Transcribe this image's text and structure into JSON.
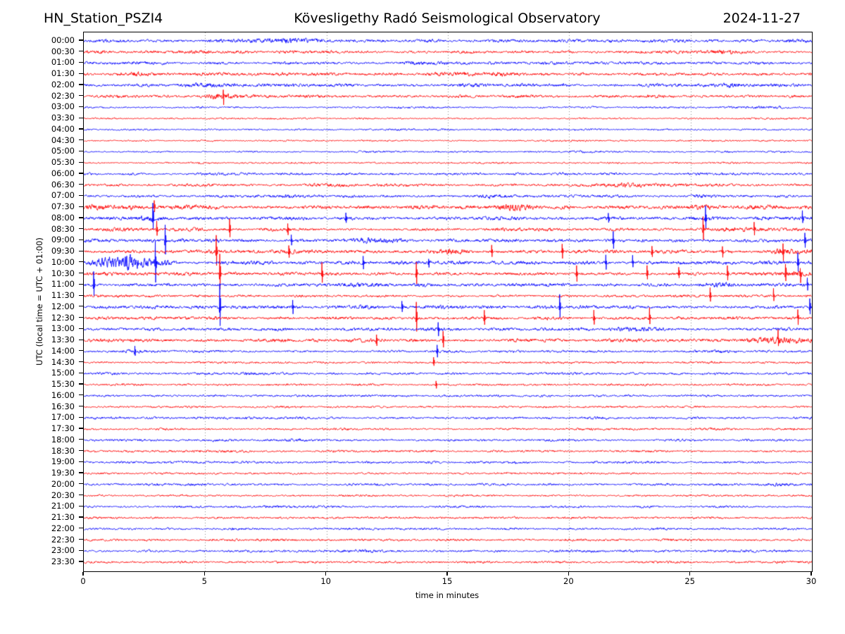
{
  "header": {
    "station": "HN_Station_PSZI4",
    "observatory": "Kövesligethy Radó Seismological Observatory",
    "date": "2024-11-27"
  },
  "chart_data": {
    "type": "line",
    "subtype": "helicorder-day-plot",
    "title": "Kövesligethy Radó Seismological Observatory",
    "station": "HN_Station_PSZI4",
    "date": "2024-11-27",
    "xlabel": "time in minutes",
    "ylabel": "UTC (local time = UTC + 01:00)",
    "x_range": [
      0,
      30
    ],
    "x_ticks": [
      "0",
      "5",
      "10",
      "15",
      "20",
      "25",
      "30"
    ],
    "x_tick_values": [
      0,
      5,
      10,
      15,
      20,
      25,
      30
    ],
    "minutes_per_row": 30,
    "grid": "vertical dotted lines at 5-minute intervals",
    "legend": "none",
    "trace_colors": {
      "blue": "#0000ff",
      "red": "#ff0000"
    },
    "grid_color": "#888888",
    "row_color_rule": "on-the-hour rows blue, half-hour rows red (alternating)",
    "amplitude_note": "amp = relative background noise amplitude (px); bursts = [center_min, width_min, gain]; spikes = [minute, peak_px] events read from the plot",
    "rows": [
      {
        "label": "00:00",
        "color": "blue",
        "amp": 2.6,
        "bursts": [
          [
            8.5,
            1.0,
            1.7
          ]
        ],
        "spikes": []
      },
      {
        "label": "00:30",
        "color": "red",
        "amp": 2.5,
        "bursts": [
          [
            4.3,
            0.8,
            1.5
          ],
          [
            26.8,
            0.6,
            1.4
          ]
        ],
        "spikes": []
      },
      {
        "label": "01:00",
        "color": "blue",
        "amp": 2.4,
        "bursts": [
          [
            14.0,
            0.8,
            1.4
          ]
        ],
        "spikes": []
      },
      {
        "label": "01:30",
        "color": "red",
        "amp": 2.5,
        "bursts": [
          [
            2.0,
            0.5,
            1.7
          ],
          [
            15.2,
            0.6,
            1.5
          ],
          [
            17.5,
            0.4,
            1.6
          ]
        ],
        "spikes": []
      },
      {
        "label": "02:00",
        "color": "blue",
        "amp": 2.6,
        "bursts": [
          [
            5.3,
            0.8,
            1.6
          ],
          [
            16.5,
            0.7,
            1.4
          ],
          [
            26.5,
            1.0,
            1.5
          ]
        ],
        "spikes": []
      },
      {
        "label": "02:30",
        "color": "red",
        "amp": 2.5,
        "bursts": [
          [
            2.5,
            0.6,
            1.4
          ],
          [
            5.7,
            0.35,
            2.6
          ]
        ],
        "spikes": [
          [
            5.75,
            10
          ]
        ]
      },
      {
        "label": "03:00",
        "color": "blue",
        "amp": 1.6,
        "bursts": [
          [
            27.8,
            0.8,
            1.7
          ]
        ],
        "spikes": []
      },
      {
        "label": "03:30",
        "color": "red",
        "amp": 1.5,
        "bursts": [],
        "spikes": []
      },
      {
        "label": "04:00",
        "color": "blue",
        "amp": 1.5,
        "bursts": [
          [
            12.5,
            0.5,
            1.3
          ]
        ],
        "spikes": []
      },
      {
        "label": "04:30",
        "color": "red",
        "amp": 1.4,
        "bursts": [],
        "spikes": []
      },
      {
        "label": "05:00",
        "color": "blue",
        "amp": 1.6,
        "bursts": [
          [
            20.5,
            0.6,
            1.3
          ]
        ],
        "spikes": []
      },
      {
        "label": "05:30",
        "color": "red",
        "amp": 1.5,
        "bursts": [],
        "spikes": []
      },
      {
        "label": "06:00",
        "color": "blue",
        "amp": 2.1,
        "bursts": [
          [
            10.5,
            0.6,
            1.3
          ],
          [
            27.8,
            0.7,
            1.4
          ]
        ],
        "spikes": []
      },
      {
        "label": "06:30",
        "color": "red",
        "amp": 2.3,
        "bursts": [
          [
            10.0,
            0.5,
            1.3
          ],
          [
            22.8,
            0.7,
            1.9
          ]
        ],
        "spikes": []
      },
      {
        "label": "07:00",
        "color": "blue",
        "amp": 2.3,
        "bursts": [
          [
            8.5,
            0.4,
            1.5
          ],
          [
            16.8,
            0.5,
            1.9
          ],
          [
            25.8,
            0.5,
            1.5
          ]
        ],
        "spikes": []
      },
      {
        "label": "07:30",
        "color": "red",
        "amp": 3.2,
        "bursts": [
          [
            1.2,
            1.0,
            1.8
          ],
          [
            17.5,
            0.9,
            1.7
          ],
          [
            25.5,
            0.7,
            1.6
          ],
          [
            28.5,
            0.8,
            1.6
          ]
        ],
        "spikes": [
          [
            2.9,
            9
          ]
        ]
      },
      {
        "label": "08:00",
        "color": "blue",
        "amp": 2.7,
        "bursts": [
          [
            2.8,
            0.9,
            1.6
          ],
          [
            25.6,
            0.5,
            1.5
          ]
        ],
        "spikes": [
          [
            2.85,
            21
          ],
          [
            10.8,
            8
          ],
          [
            21.6,
            8
          ],
          [
            25.6,
            17
          ],
          [
            29.6,
            9
          ]
        ]
      },
      {
        "label": "08:30",
        "color": "red",
        "amp": 2.7,
        "bursts": [
          [
            1.0,
            0.5,
            1.5
          ],
          [
            27.0,
            0.8,
            1.5
          ]
        ],
        "spikes": [
          [
            3.0,
            11
          ],
          [
            6.0,
            15
          ],
          [
            8.4,
            8
          ],
          [
            25.5,
            19
          ],
          [
            27.6,
            9
          ]
        ]
      },
      {
        "label": "09:00",
        "color": "blue",
        "amp": 2.8,
        "bursts": [
          [
            0.3,
            0.4,
            1.5
          ],
          [
            12.2,
            0.5,
            2.2
          ]
        ],
        "spikes": [
          [
            3.35,
            23
          ],
          [
            8.55,
            9
          ],
          [
            21.8,
            13
          ],
          [
            29.7,
            11
          ]
        ]
      },
      {
        "label": "09:30",
        "color": "red",
        "amp": 3.0,
        "bursts": [
          [
            15.0,
            0.6,
            1.6
          ],
          [
            29.3,
            0.6,
            1.9
          ]
        ],
        "spikes": [
          [
            5.45,
            24
          ],
          [
            8.45,
            11
          ],
          [
            16.8,
            9
          ],
          [
            19.7,
            11
          ],
          [
            23.4,
            9
          ],
          [
            26.3,
            8
          ],
          [
            28.8,
            13
          ]
        ]
      },
      {
        "label": "10:00",
        "color": "blue",
        "amp": 2.9,
        "bursts": [
          [
            1.3,
            0.7,
            2.9
          ],
          [
            2.4,
            0.7,
            2.3
          ]
        ],
        "spikes": [
          [
            2.95,
            32
          ],
          [
            11.5,
            11
          ],
          [
            14.2,
            7
          ],
          [
            21.5,
            11
          ],
          [
            22.6,
            9
          ],
          [
            29.4,
            15
          ]
        ]
      },
      {
        "label": "10:30",
        "color": "red",
        "amp": 2.8,
        "bursts": [
          [
            29.2,
            0.7,
            1.7
          ]
        ],
        "spikes": [
          [
            5.6,
            28
          ],
          [
            9.8,
            15
          ],
          [
            13.7,
            17
          ],
          [
            20.3,
            13
          ],
          [
            23.2,
            11
          ],
          [
            24.5,
            9
          ],
          [
            26.5,
            11
          ],
          [
            28.9,
            15
          ],
          [
            29.5,
            11
          ]
        ]
      },
      {
        "label": "11:00",
        "color": "blue",
        "amp": 2.8,
        "bursts": [
          [
            11.2,
            0.6,
            1.5
          ],
          [
            14.0,
            0.5,
            1.5
          ],
          [
            26.0,
            0.6,
            1.5
          ]
        ],
        "spikes": [
          [
            0.4,
            20
          ],
          [
            29.8,
            9
          ]
        ]
      },
      {
        "label": "11:30",
        "color": "red",
        "amp": 2.2,
        "bursts": [
          [
            9.0,
            0.4,
            1.4
          ]
        ],
        "spikes": [
          [
            25.8,
            11
          ],
          [
            28.4,
            9
          ]
        ]
      },
      {
        "label": "12:00",
        "color": "blue",
        "amp": 2.7,
        "bursts": [
          [
            11.0,
            0.8,
            1.6
          ],
          [
            16.3,
            0.8,
            1.5
          ]
        ],
        "spikes": [
          [
            5.6,
            34
          ],
          [
            8.6,
            11
          ],
          [
            13.1,
            9
          ],
          [
            19.6,
            18
          ],
          [
            29.9,
            13
          ]
        ]
      },
      {
        "label": "12:30",
        "color": "red",
        "amp": 2.6,
        "bursts": [
          [
            5.0,
            0.5,
            1.4
          ]
        ],
        "spikes": [
          [
            13.7,
            24
          ],
          [
            16.5,
            11
          ],
          [
            21.0,
            11
          ],
          [
            23.3,
            13
          ],
          [
            29.4,
            11
          ]
        ]
      },
      {
        "label": "13:00",
        "color": "blue",
        "amp": 2.7,
        "bursts": [
          [
            12.3,
            0.6,
            1.5
          ],
          [
            23.0,
            0.6,
            1.4
          ]
        ],
        "spikes": [
          [
            14.6,
            11
          ]
        ]
      },
      {
        "label": "13:30",
        "color": "red",
        "amp": 2.9,
        "bursts": [
          [
            12.0,
            0.5,
            1.5
          ],
          [
            28.9,
            0.9,
            1.9
          ]
        ],
        "spikes": [
          [
            12.05,
            9
          ],
          [
            14.8,
            13
          ],
          [
            28.6,
            11
          ]
        ]
      },
      {
        "label": "14:00",
        "color": "blue",
        "amp": 2.1,
        "bursts": [
          [
            2.1,
            0.4,
            1.5
          ]
        ],
        "spikes": [
          [
            2.1,
            7
          ],
          [
            14.55,
            9
          ]
        ]
      },
      {
        "label": "14:30",
        "color": "red",
        "amp": 1.8,
        "bursts": [],
        "spikes": [
          [
            14.4,
            7
          ]
        ]
      },
      {
        "label": "15:00",
        "color": "blue",
        "amp": 2.1,
        "bursts": [
          [
            7.0,
            0.5,
            1.3
          ]
        ],
        "spikes": []
      },
      {
        "label": "15:30",
        "color": "red",
        "amp": 1.8,
        "bursts": [],
        "spikes": [
          [
            14.5,
            6
          ]
        ]
      },
      {
        "label": "16:00",
        "color": "blue",
        "amp": 1.9,
        "bursts": [],
        "spikes": []
      },
      {
        "label": "16:30",
        "color": "red",
        "amp": 1.7,
        "bursts": [],
        "spikes": []
      },
      {
        "label": "17:00",
        "color": "blue",
        "amp": 2.1,
        "bursts": [
          [
            0.3,
            0.3,
            1.5
          ]
        ],
        "spikes": []
      },
      {
        "label": "17:30",
        "color": "red",
        "amp": 1.8,
        "bursts": [],
        "spikes": []
      },
      {
        "label": "18:00",
        "color": "blue",
        "amp": 2.0,
        "bursts": [
          [
            8.6,
            0.4,
            1.5
          ]
        ],
        "spikes": []
      },
      {
        "label": "18:30",
        "color": "red",
        "amp": 1.8,
        "bursts": [
          [
            6.0,
            0.4,
            1.3
          ]
        ],
        "spikes": []
      },
      {
        "label": "19:00",
        "color": "blue",
        "amp": 2.0,
        "bursts": [
          [
            12.0,
            0.5,
            1.3
          ]
        ],
        "spikes": []
      },
      {
        "label": "19:30",
        "color": "red",
        "amp": 1.7,
        "bursts": [],
        "spikes": []
      },
      {
        "label": "20:00",
        "color": "blue",
        "amp": 2.0,
        "bursts": [
          [
            28.8,
            0.5,
            1.7
          ]
        ],
        "spikes": []
      },
      {
        "label": "20:30",
        "color": "red",
        "amp": 1.7,
        "bursts": [],
        "spikes": []
      },
      {
        "label": "21:00",
        "color": "blue",
        "amp": 2.0,
        "bursts": [],
        "spikes": []
      },
      {
        "label": "21:30",
        "color": "red",
        "amp": 1.8,
        "bursts": [
          [
            0.5,
            0.3,
            1.5
          ]
        ],
        "spikes": []
      },
      {
        "label": "22:00",
        "color": "blue",
        "amp": 2.0,
        "bursts": [
          [
            14.5,
            0.5,
            1.3
          ]
        ],
        "spikes": []
      },
      {
        "label": "22:30",
        "color": "red",
        "amp": 2.0,
        "bursts": [
          [
            0.8,
            0.5,
            1.5
          ],
          [
            11.0,
            0.4,
            1.3
          ]
        ],
        "spikes": []
      },
      {
        "label": "23:00",
        "color": "blue",
        "amp": 2.0,
        "bursts": [
          [
            11.5,
            0.5,
            1.5
          ]
        ],
        "spikes": []
      },
      {
        "label": "23:30",
        "color": "red",
        "amp": 1.9,
        "bursts": [
          [
            13.0,
            0.5,
            1.3
          ]
        ],
        "spikes": []
      }
    ]
  }
}
